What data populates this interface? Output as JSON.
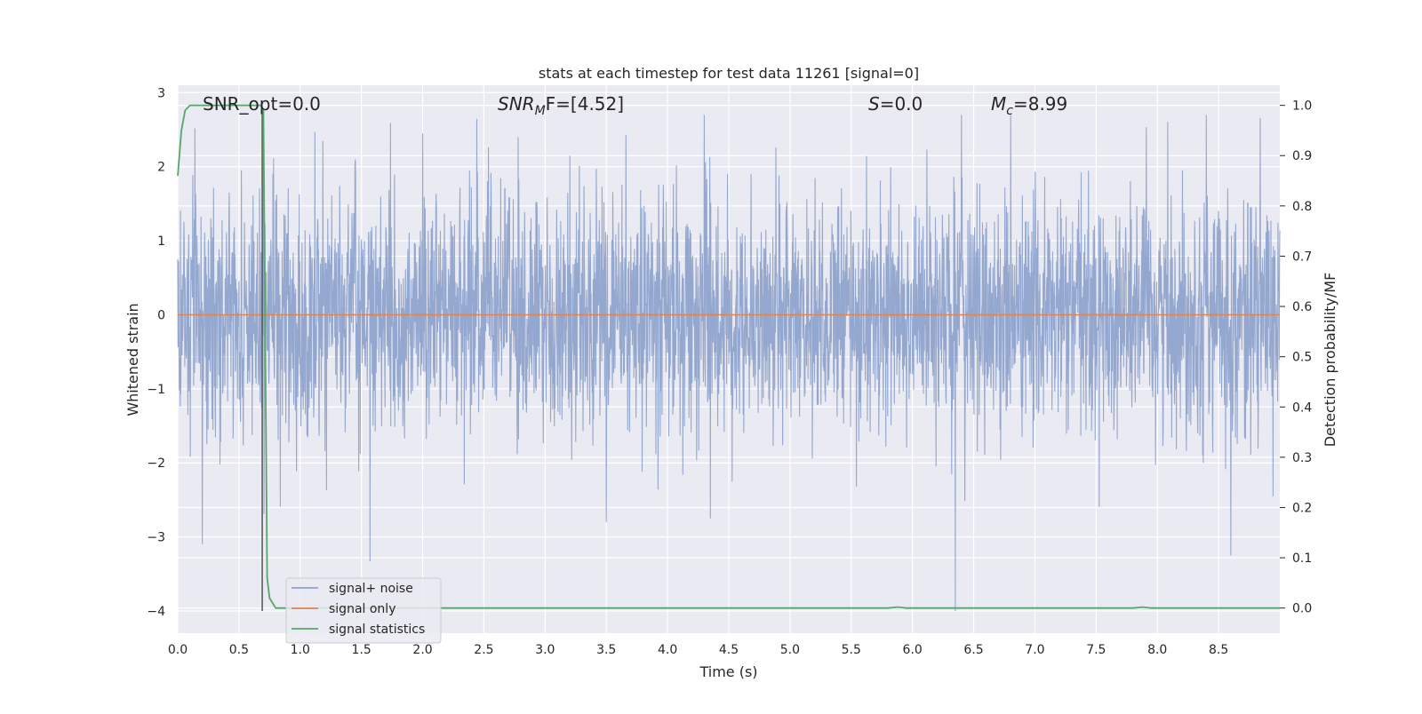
{
  "chart_data": {
    "type": "line",
    "title": "stats at each timestep for test data 11261 [signal=0]",
    "xlabel": "Time (s)",
    "ylabel": "Whitened strain",
    "y2label": "Detection probability/MF",
    "xlim": [
      0.0,
      9.0
    ],
    "ylim": [
      -4.3,
      3.1
    ],
    "y2lim": [
      -0.05,
      1.04
    ],
    "xticks": [
      "0.0",
      "0.5",
      "1.0",
      "1.5",
      "2.0",
      "2.5",
      "3.0",
      "3.5",
      "4.0",
      "4.5",
      "5.0",
      "5.5",
      "6.0",
      "6.5",
      "7.0",
      "7.5",
      "8.0",
      "8.5"
    ],
    "yticks": [
      "−4",
      "−3",
      "−2",
      "−1",
      "0",
      "1",
      "2",
      "3"
    ],
    "y2ticks": [
      "0.0",
      "0.1",
      "0.2",
      "0.3",
      "0.4",
      "0.5",
      "0.6",
      "0.7",
      "0.8",
      "0.9",
      "1.0"
    ],
    "grid": true,
    "legend_position": "lower-left",
    "annotations": {
      "snr_opt": "SNR_opt=0.0",
      "snr_mf_base": "SNR",
      "snr_mf_sub": "M",
      "snr_mf_rest": "F=[4.52]",
      "s_base": "S",
      "s_rest": "=0.0",
      "mc_base": "M",
      "mc_sub": "c",
      "mc_rest": "=8.99"
    },
    "series": [
      {
        "name": "signal+ noise",
        "axis": "left",
        "color": "#8fa3cc",
        "description_stat": {
          "mean": 0.0,
          "typical_range": [
            -1.8,
            1.8
          ],
          "min": -4.0,
          "max": 2.7
        },
        "spikes": [
          {
            "x": 0.2,
            "y": -3.1
          },
          {
            "x": 0.7,
            "y": 2.0
          },
          {
            "x": 1.45,
            "y": 2.1
          },
          {
            "x": 2.0,
            "y": 2.45
          },
          {
            "x": 2.78,
            "y": 2.4
          },
          {
            "x": 3.5,
            "y": -2.8
          },
          {
            "x": 4.3,
            "y": 2.7
          },
          {
            "x": 4.35,
            "y": -2.75
          },
          {
            "x": 6.35,
            "y": -4.0
          },
          {
            "x": 6.4,
            "y": 2.7
          },
          {
            "x": 8.6,
            "y": -3.25
          },
          {
            "x": 8.4,
            "y": 2.7
          }
        ]
      },
      {
        "name": "signal only",
        "axis": "left",
        "color": "#dd8452",
        "x": [
          0.0,
          9.0
        ],
        "y": [
          0.0,
          0.0
        ]
      },
      {
        "name": "signal statistics",
        "axis": "right",
        "color": "#55a868",
        "x": [
          0.0,
          0.03,
          0.06,
          0.1,
          0.2,
          0.4,
          0.6,
          0.65,
          0.68,
          0.7,
          0.73,
          0.75,
          0.8,
          1.0,
          3.0,
          5.0,
          5.8,
          5.88,
          5.95,
          7.0,
          7.8,
          7.88,
          7.95,
          9.0
        ],
        "y": [
          0.86,
          0.95,
          0.99,
          1.0,
          1.0,
          1.0,
          1.0,
          1.0,
          1.0,
          0.99,
          0.06,
          0.02,
          0.0,
          0.0,
          0.0,
          0.0,
          0.0,
          0.002,
          0.0,
          0.0,
          0.0,
          0.002,
          0.0,
          0.0
        ]
      }
    ],
    "vertical_line": {
      "x": 0.69,
      "ymin": -4.0,
      "ymax": 2.75,
      "color": "#555555"
    }
  }
}
